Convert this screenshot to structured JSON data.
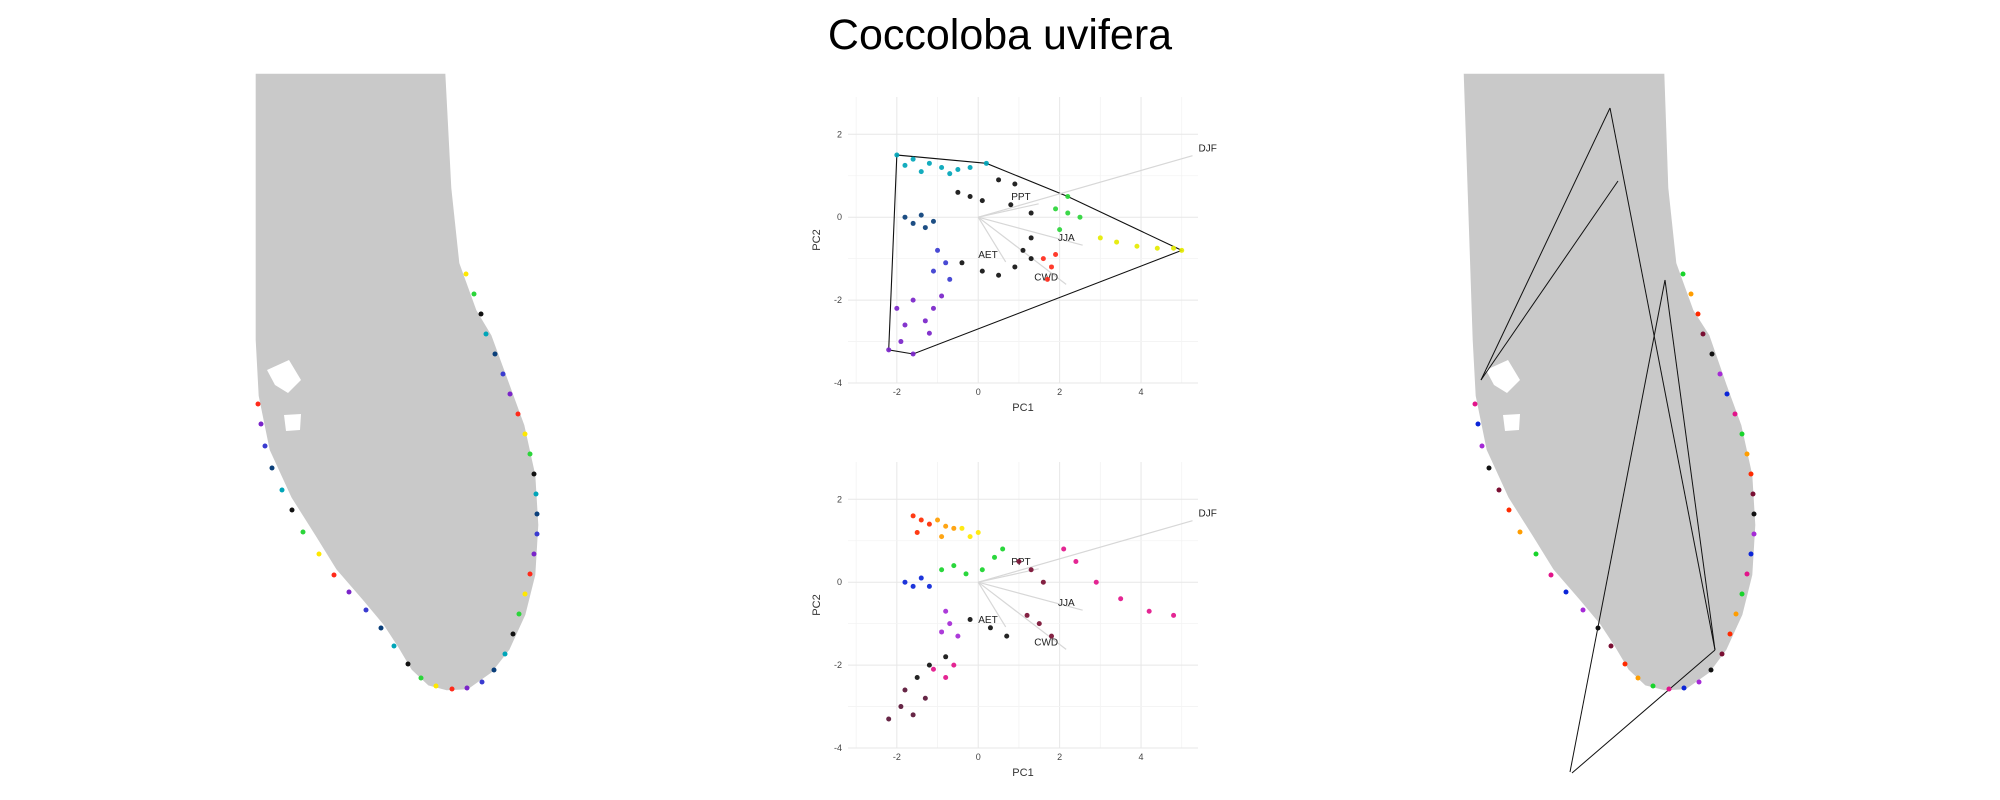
{
  "title": "Coccoloba uvifera",
  "chart_data": [
    {
      "type": "scatter",
      "panel": "pca-top",
      "title": "",
      "xlabel": "PC1",
      "ylabel": "PC2",
      "xlim": [
        -3.2,
        5.4
      ],
      "ylim": [
        -4.0,
        2.9
      ],
      "x_ticks": [
        -2,
        0,
        2,
        4
      ],
      "y_ticks": [
        -4,
        -2,
        0,
        2
      ],
      "grid": true,
      "convex_hull": true,
      "loadings": [
        {
          "name": "PPT",
          "x": 0.55,
          "y": 0.12
        },
        {
          "name": "AET",
          "x": 0.25,
          "y": -0.4
        },
        {
          "name": "DJF",
          "x": 1.95,
          "y": 0.55
        },
        {
          "name": "JJA",
          "x": 0.95,
          "y": -0.25
        },
        {
          "name": "CWD",
          "x": 0.8,
          "y": -0.6
        }
      ],
      "color_scheme": "geographic gradient: yellow (southern tip) → green → black → cyan → blue → purple; red at mid-right",
      "series": [
        {
          "color": "#00a5b8",
          "points": [
            [
              -2.0,
              1.5
            ],
            [
              -1.6,
              1.4
            ],
            [
              -1.2,
              1.3
            ],
            [
              -0.9,
              1.2
            ],
            [
              -0.5,
              1.15
            ],
            [
              -0.2,
              1.2
            ],
            [
              0.2,
              1.3
            ],
            [
              -1.8,
              1.25
            ],
            [
              -1.4,
              1.1
            ],
            [
              -0.7,
              1.05
            ]
          ]
        },
        {
          "color": "#0a3f7a",
          "points": [
            [
              -1.8,
              0.0
            ],
            [
              -1.6,
              -0.15
            ],
            [
              -1.4,
              0.05
            ],
            [
              -1.3,
              -0.25
            ],
            [
              -1.1,
              -0.1
            ]
          ]
        },
        {
          "color": "#111111",
          "points": [
            [
              -0.5,
              0.6
            ],
            [
              -0.2,
              0.5
            ],
            [
              0.1,
              0.4
            ],
            [
              0.5,
              0.9
            ],
            [
              0.9,
              0.8
            ],
            [
              1.3,
              0.1
            ],
            [
              1.3,
              -0.5
            ],
            [
              1.3,
              -1.0
            ],
            [
              0.9,
              -1.2
            ],
            [
              0.5,
              -1.4
            ],
            [
              0.1,
              -1.3
            ],
            [
              -0.4,
              -1.1
            ],
            [
              0.8,
              0.3
            ],
            [
              1.1,
              -0.8
            ]
          ]
        },
        {
          "color": "#3a3bd0",
          "points": [
            [
              -1.0,
              -0.8
            ],
            [
              -0.8,
              -1.1
            ],
            [
              -0.7,
              -1.5
            ],
            [
              -1.1,
              -1.3
            ]
          ]
        },
        {
          "color": "#7a24c9",
          "points": [
            [
              -2.0,
              -2.2
            ],
            [
              -1.8,
              -2.6
            ],
            [
              -1.6,
              -2.0
            ],
            [
              -1.3,
              -2.5
            ],
            [
              -1.1,
              -2.2
            ],
            [
              -0.9,
              -1.9
            ],
            [
              -2.2,
              -3.2
            ],
            [
              -1.9,
              -3.0
            ],
            [
              -1.6,
              -3.3
            ],
            [
              -1.2,
              -2.8
            ]
          ]
        },
        {
          "color": "#ff2a1a",
          "points": [
            [
              1.6,
              -1.0
            ],
            [
              1.8,
              -1.2
            ],
            [
              1.7,
              -1.5
            ],
            [
              1.9,
              -0.9
            ]
          ]
        },
        {
          "color": "#2bd53a",
          "points": [
            [
              1.9,
              0.2
            ],
            [
              2.2,
              0.1
            ],
            [
              2.5,
              0.0
            ],
            [
              2.2,
              0.5
            ],
            [
              2.0,
              -0.3
            ]
          ]
        },
        {
          "color": "#e5ea00",
          "points": [
            [
              3.0,
              -0.5
            ],
            [
              3.4,
              -0.6
            ],
            [
              3.9,
              -0.7
            ],
            [
              4.4,
              -0.75
            ],
            [
              4.8,
              -0.75
            ],
            [
              5.0,
              -0.8
            ]
          ]
        }
      ]
    },
    {
      "type": "scatter",
      "panel": "pca-bottom",
      "title": "",
      "xlabel": "PC1",
      "ylabel": "PC2",
      "xlim": [
        -3.2,
        5.4
      ],
      "ylim": [
        -4.0,
        2.9
      ],
      "x_ticks": [
        -2,
        0,
        2,
        4
      ],
      "y_ticks": [
        -4,
        -2,
        0,
        2
      ],
      "grid": true,
      "loadings": [
        {
          "name": "PPT",
          "x": 0.55,
          "y": 0.12
        },
        {
          "name": "AET",
          "x": 0.25,
          "y": -0.4
        },
        {
          "name": "DJF",
          "x": 1.95,
          "y": 0.55
        },
        {
          "name": "JJA",
          "x": 0.95,
          "y": -0.25
        },
        {
          "name": "CWD",
          "x": 0.8,
          "y": -0.6
        }
      ],
      "color_scheme": "clustered colors: red/orange, yellow, green, blue, purple, dark red, black, pink",
      "series": [
        {
          "color": "#ff2a00",
          "points": [
            [
              -1.6,
              1.6
            ],
            [
              -1.4,
              1.5
            ],
            [
              -1.2,
              1.4
            ],
            [
              -1.5,
              1.2
            ]
          ]
        },
        {
          "color": "#ff9d00",
          "points": [
            [
              -1.0,
              1.5
            ],
            [
              -0.8,
              1.35
            ],
            [
              -0.6,
              1.3
            ],
            [
              -0.9,
              1.1
            ]
          ]
        },
        {
          "color": "#ffe800",
          "points": [
            [
              -0.4,
              1.3
            ],
            [
              -0.2,
              1.1
            ],
            [
              0.0,
              1.2
            ]
          ]
        },
        {
          "color": "#18d42b",
          "points": [
            [
              -0.6,
              0.4
            ],
            [
              -0.3,
              0.2
            ],
            [
              0.1,
              0.3
            ],
            [
              0.4,
              0.6
            ],
            [
              0.6,
              0.8
            ],
            [
              -0.9,
              0.3
            ]
          ]
        },
        {
          "color": "#0b25d8",
          "points": [
            [
              -1.8,
              0.0
            ],
            [
              -1.6,
              -0.1
            ],
            [
              -1.4,
              0.1
            ],
            [
              -1.2,
              -0.1
            ]
          ]
        },
        {
          "color": "#a52ad6",
          "points": [
            [
              -0.8,
              -0.7
            ],
            [
              -0.7,
              -1.0
            ],
            [
              -0.5,
              -1.3
            ],
            [
              -0.9,
              -1.2
            ]
          ]
        },
        {
          "color": "#7a0f33",
          "points": [
            [
              1.0,
              0.5
            ],
            [
              1.3,
              0.3
            ],
            [
              1.6,
              0.0
            ],
            [
              1.2,
              -0.8
            ],
            [
              1.5,
              -1.0
            ],
            [
              1.8,
              -1.3
            ]
          ]
        },
        {
          "color": "#111111",
          "points": [
            [
              -0.2,
              -0.9
            ],
            [
              0.3,
              -1.1
            ],
            [
              0.7,
              -1.3
            ],
            [
              -0.8,
              -1.8
            ],
            [
              -1.2,
              -2.0
            ],
            [
              -1.5,
              -2.3
            ]
          ]
        },
        {
          "color": "#e2148a",
          "points": [
            [
              2.1,
              0.8
            ],
            [
              2.4,
              0.5
            ],
            [
              2.9,
              0.0
            ],
            [
              3.5,
              -0.4
            ],
            [
              4.2,
              -0.7
            ],
            [
              4.8,
              -0.8
            ],
            [
              -1.1,
              -2.1
            ],
            [
              -0.8,
              -2.3
            ],
            [
              -0.6,
              -2.0
            ]
          ]
        },
        {
          "color": "#5a1436",
          "points": [
            [
              -2.2,
              -3.3
            ],
            [
              -1.9,
              -3.0
            ],
            [
              -1.6,
              -3.2
            ],
            [
              -1.3,
              -2.8
            ],
            [
              -1.8,
              -2.6
            ]
          ]
        }
      ]
    }
  ],
  "maps": {
    "left": {
      "title": "",
      "palette": [
        "#ffe800",
        "#2bd53a",
        "#111111",
        "#00a5b8",
        "#0a3f7a",
        "#3a3bd0",
        "#7a24c9",
        "#ff2a1a"
      ]
    },
    "right": {
      "title": "",
      "palette": [
        "#18d42b",
        "#ff9d00",
        "#ff2a00",
        "#7a0f33",
        "#111111",
        "#a52ad6",
        "#0b25d8",
        "#e2148a"
      ]
    }
  }
}
